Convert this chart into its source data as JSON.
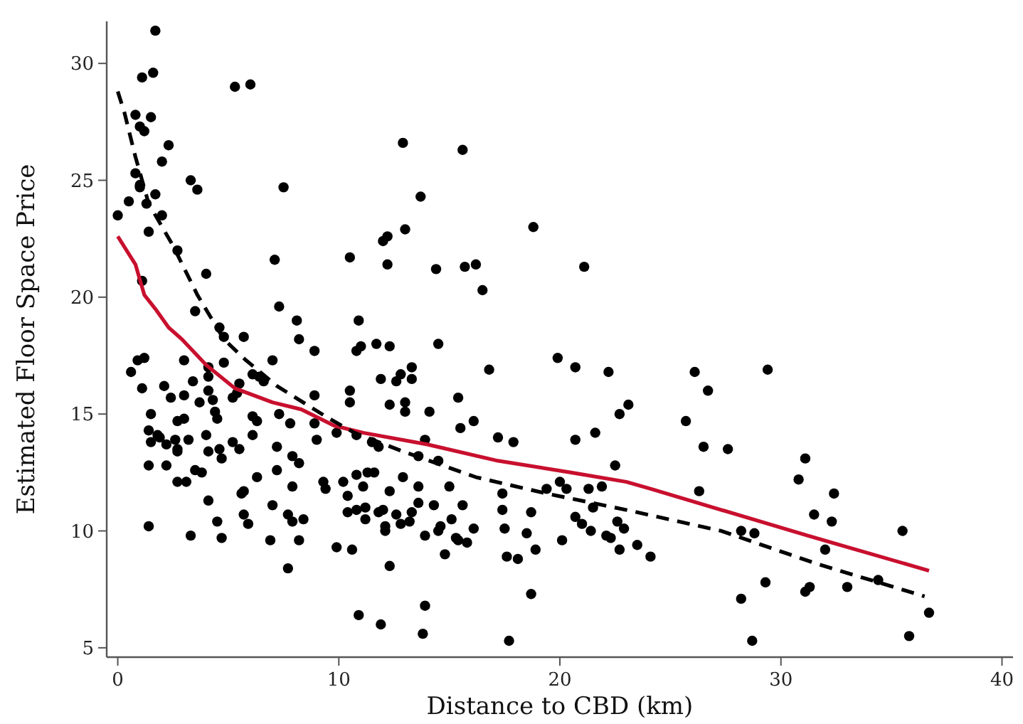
{
  "chart_data": {
    "type": "scatter",
    "xlabel": "Distance to CBD (km)",
    "ylabel": "Estimated Floor Space Price",
    "xlim": [
      -0.5,
      40.5
    ],
    "ylim": [
      4.6,
      31.8
    ],
    "xticks": [
      0,
      10,
      20,
      30,
      40
    ],
    "yticks": [
      5,
      10,
      15,
      20,
      25,
      30
    ],
    "grid": false,
    "series": [
      {
        "color": "#000000",
        "marker": "circle",
        "x": [
          1.7,
          1.1,
          1.6,
          5.3,
          6.0,
          0.8,
          1.5,
          1.0,
          1.2,
          2.3,
          2.0,
          0.8,
          1.0,
          1.0,
          1.7,
          3.3,
          3.6,
          7.5,
          1.3,
          2.0,
          1.4,
          2.7,
          7.1,
          10.5,
          4.0,
          1.1,
          7.3,
          3.5,
          8.1,
          10.9,
          4.6,
          4.8,
          5.7,
          8.2,
          0.0,
          0.5,
          0.6,
          0.9,
          1.2,
          1.1,
          1.5,
          1.4,
          1.5,
          1.4,
          1.4,
          8.9,
          10.8,
          11.0,
          3.0,
          4.8,
          7.0,
          4.1,
          3.4,
          4.1,
          6.1,
          6.4,
          6.6,
          5.5,
          2.1,
          3.0,
          2.4,
          4.1,
          3.7,
          4.3,
          5.2,
          5.4,
          8.9,
          10.5,
          10.5,
          4.4,
          4.5,
          6.1,
          6.3,
          7.3,
          7.8,
          8.9,
          9.9,
          1.8,
          1.9,
          2.2,
          2.6,
          2.7,
          3.0,
          2.7,
          2.7,
          3.2,
          4.0,
          5.2,
          5.5,
          6.1,
          4.1,
          4.6,
          4.7,
          7.2,
          9.0,
          2.2,
          3.5,
          3.8,
          7.9,
          8.2,
          7.2,
          2.7,
          3.1,
          6.3,
          7.9,
          9.3,
          9.4,
          10.2,
          10.8,
          5.6,
          5.7,
          10.4,
          4.1,
          7.0,
          10.8,
          10.4,
          5.7,
          7.7,
          7.9,
          8.4,
          4.5,
          5.9,
          3.3,
          4.7,
          6.9,
          8.2,
          9.9,
          10.6,
          7.7,
          10.9,
          12.9,
          15.6,
          13.7,
          13.0,
          18.8,
          12.0,
          12.2,
          12.2,
          14.4,
          15.7,
          16.2,
          21.1,
          16.5,
          11.7,
          12.3,
          14.5,
          16.8,
          19.9,
          20.7,
          22.2,
          13.3,
          12.8,
          12.6,
          13.3,
          11.9,
          12.3,
          13.0,
          13.0,
          15.4,
          14.1,
          23.1,
          22.7,
          15.5,
          16.1,
          10.8,
          11.5,
          11.8,
          13.9,
          17.2,
          17.9,
          20.7,
          21.6,
          13.6,
          14.5,
          22.5,
          11.3,
          11.6,
          11.1,
          12.9,
          13.6,
          15.0,
          12.3,
          17.4,
          20.0,
          20.3,
          19.4,
          21.3,
          21.9,
          21.5,
          13.6,
          14.3,
          15.6,
          11.2,
          11.2,
          11.8,
          12.0,
          12.6,
          12.8,
          13.2,
          13.3,
          12.1,
          12.1,
          15.1,
          14.6,
          14.5,
          16.1,
          17.4,
          17.5,
          18.7,
          18.5,
          15.3,
          15.4,
          15.8,
          13.9,
          14.8,
          18.9,
          17.6,
          18.1,
          20.1,
          20.7,
          21.0,
          21.4,
          22.1,
          22.3,
          22.7,
          22.6,
          22.9,
          23.5,
          12.3,
          11.9,
          13.9,
          13.8,
          17.7,
          18.7,
          26.1,
          29.4,
          26.7,
          25.7,
          26.5,
          27.6,
          31.1,
          30.8,
          32.4,
          26.3,
          31.5,
          32.3,
          24.1,
          28.2,
          28.8,
          35.5,
          32.0,
          29.3,
          31.1,
          31.3,
          33.0,
          34.4,
          28.2,
          36.7,
          28.7,
          35.8
        ],
        "values": [
          31.4,
          29.4,
          29.6,
          29.0,
          29.1,
          27.8,
          27.7,
          27.3,
          27.1,
          26.5,
          25.8,
          25.3,
          24.8,
          24.7,
          24.4,
          25.0,
          24.6,
          24.7,
          24.0,
          23.5,
          22.8,
          22.0,
          21.6,
          21.7,
          21.0,
          20.7,
          19.6,
          19.4,
          19.0,
          19.0,
          18.7,
          18.3,
          18.3,
          18.2,
          23.5,
          24.1,
          16.8,
          17.3,
          17.4,
          16.1,
          15.0,
          14.3,
          13.8,
          12.8,
          10.2,
          17.7,
          17.7,
          17.9,
          17.3,
          17.2,
          17.3,
          17.0,
          16.4,
          16.6,
          16.7,
          16.6,
          16.4,
          16.3,
          16.2,
          15.8,
          15.7,
          16.0,
          15.5,
          15.6,
          15.7,
          15.9,
          15.8,
          16.0,
          15.5,
          15.1,
          14.8,
          14.9,
          14.7,
          15.0,
          14.6,
          14.6,
          14.2,
          14.1,
          14.0,
          13.7,
          13.9,
          14.7,
          14.8,
          13.5,
          13.4,
          13.9,
          14.1,
          13.8,
          13.5,
          14.1,
          13.4,
          13.5,
          13.1,
          13.6,
          13.9,
          12.8,
          12.6,
          12.5,
          13.2,
          12.9,
          12.6,
          12.1,
          12.1,
          12.3,
          11.9,
          12.1,
          11.8,
          12.1,
          12.4,
          11.6,
          11.7,
          11.5,
          11.3,
          11.1,
          10.9,
          10.8,
          10.7,
          10.7,
          10.4,
          10.5,
          10.4,
          10.3,
          9.8,
          9.7,
          9.6,
          9.6,
          9.3,
          9.2,
          8.4,
          6.4,
          26.6,
          26.3,
          24.3,
          22.9,
          23.0,
          22.4,
          22.6,
          21.4,
          21.2,
          21.3,
          21.4,
          21.3,
          20.3,
          18.0,
          17.9,
          18.0,
          16.9,
          17.4,
          17.0,
          16.8,
          17.0,
          16.7,
          16.4,
          16.5,
          16.5,
          15.4,
          15.5,
          15.1,
          15.7,
          15.1,
          15.4,
          15.0,
          14.4,
          14.7,
          14.1,
          13.8,
          13.6,
          13.9,
          14.0,
          13.8,
          13.9,
          14.2,
          13.2,
          13.0,
          12.8,
          12.5,
          12.5,
          11.9,
          12.3,
          11.9,
          11.9,
          11.7,
          11.6,
          12.1,
          11.8,
          11.8,
          11.8,
          11.9,
          11.0,
          11.2,
          11.1,
          11.1,
          11.0,
          10.5,
          10.8,
          10.9,
          10.7,
          10.3,
          10.4,
          10.8,
          10.2,
          10.0,
          10.5,
          10.2,
          10.0,
          10.1,
          10.9,
          10.1,
          10.8,
          9.9,
          9.7,
          9.6,
          9.5,
          9.8,
          9.0,
          9.2,
          8.9,
          8.8,
          9.6,
          10.6,
          10.3,
          10.0,
          9.8,
          9.7,
          9.2,
          10.4,
          10.1,
          9.4,
          8.5,
          6.0,
          6.8,
          5.6,
          5.3,
          7.3,
          16.8,
          16.9,
          16.0,
          14.7,
          13.6,
          13.5,
          13.1,
          12.2,
          11.6,
          11.7,
          10.7,
          10.4,
          8.9,
          10.0,
          9.9,
          10.0,
          9.2,
          7.8,
          7.4,
          7.6,
          7.6,
          7.9,
          7.1,
          6.5,
          5.3,
          5.5
        ]
      },
      {
        "type": "line",
        "color": "#c8102e",
        "line_style": "solid",
        "x": [
          0.0,
          0.8,
          1.2,
          1.7,
          2.3,
          2.9,
          4.0,
          5.3,
          7.0,
          8.3,
          9.8,
          11.1,
          14.0,
          17.2,
          20.5,
          23.0,
          24.1,
          27.3,
          31.2,
          36.7
        ],
        "values": [
          22.6,
          21.4,
          20.1,
          19.5,
          18.7,
          18.2,
          17.1,
          16.1,
          15.5,
          15.2,
          14.5,
          14.2,
          13.7,
          13.0,
          12.5,
          12.1,
          11.8,
          10.9,
          9.8,
          8.3
        ]
      },
      {
        "type": "line",
        "color": "#000000",
        "line_style": "dashed",
        "x": [
          0.0,
          0.3,
          0.8,
          1.4,
          2.5,
          3.6,
          4.8,
          5.8,
          7.2,
          9.4,
          10.7,
          12.9,
          16.2,
          19.4,
          23.0,
          27.3,
          31.6,
          36.5
        ],
        "values": [
          28.8,
          27.9,
          26.0,
          24.0,
          22.2,
          20.1,
          18.2,
          17.3,
          16.2,
          14.9,
          14.2,
          13.4,
          12.3,
          11.6,
          10.9,
          10.0,
          8.6,
          7.2
        ]
      }
    ]
  }
}
